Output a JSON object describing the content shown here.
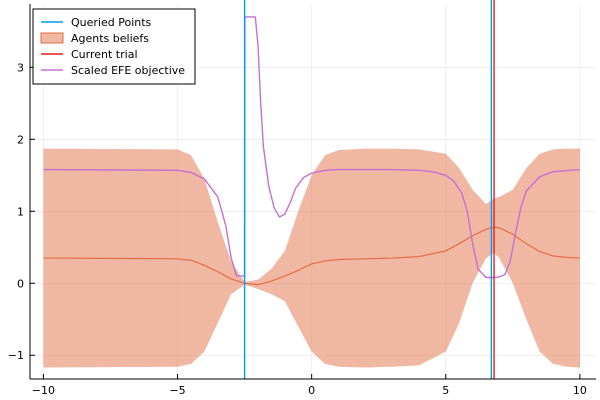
{
  "chart_data": {
    "type": "line",
    "title": "",
    "xlabel": "",
    "ylabel": "",
    "xlim": [
      -10.5,
      10.6
    ],
    "ylim": [
      -1.33,
      3.88
    ],
    "x_ticks": [
      -10,
      -5,
      0,
      5,
      10
    ],
    "y_ticks": [
      -1,
      0,
      1,
      2,
      3
    ],
    "x_tick_labels": [
      "−10",
      "−5",
      "0",
      "5",
      "10"
    ],
    "y_tick_labels": [
      "−1",
      "0",
      "1",
      "2",
      "3"
    ],
    "grid": true,
    "legend_position": "top-left",
    "series": [
      {
        "name": "Queried Points",
        "type": "vline",
        "color": "#009AFA",
        "x": [
          -2.5,
          6.7
        ]
      },
      {
        "name": "Agents beliefs",
        "type": "band",
        "fill_color": "#E26F46",
        "fill_opacity": 0.5,
        "line_color": "#E26F46",
        "x": [
          -10,
          -5,
          -4.5,
          -4,
          -3.5,
          -3,
          -2.5,
          -2,
          -1.5,
          -1,
          -0.5,
          0,
          0.5,
          1,
          2,
          3,
          4,
          5,
          5.5,
          6,
          6.5,
          6.8,
          7,
          7.5,
          8,
          8.5,
          9,
          9.5,
          10
        ],
        "mean": [
          0.35,
          0.34,
          0.32,
          0.25,
          0.16,
          0.06,
          0.0,
          -0.02,
          0.03,
          0.1,
          0.18,
          0.27,
          0.31,
          0.33,
          0.34,
          0.35,
          0.37,
          0.45,
          0.55,
          0.66,
          0.75,
          0.78,
          0.77,
          0.68,
          0.55,
          0.44,
          0.38,
          0.36,
          0.35
        ],
        "upper": [
          1.87,
          1.86,
          1.78,
          1.45,
          0.85,
          0.3,
          0.02,
          0.05,
          0.2,
          0.45,
          1.0,
          1.5,
          1.78,
          1.85,
          1.87,
          1.87,
          1.86,
          1.8,
          1.6,
          1.3,
          1.1,
          1.18,
          1.2,
          1.3,
          1.6,
          1.8,
          1.86,
          1.87,
          1.87
        ],
        "lower": [
          -1.17,
          -1.16,
          -1.12,
          -0.95,
          -0.55,
          -0.15,
          -0.02,
          -0.08,
          -0.15,
          -0.25,
          -0.6,
          -0.95,
          -1.12,
          -1.16,
          -1.17,
          -1.16,
          -1.14,
          -0.95,
          -0.55,
          0.0,
          0.35,
          0.42,
          0.35,
          0.0,
          -0.5,
          -0.95,
          -1.12,
          -1.16,
          -1.17
        ]
      },
      {
        "name": "Current trial",
        "type": "vline",
        "color": "#E3211E",
        "x": [
          6.8
        ]
      },
      {
        "name": "Scaled EFE objective",
        "type": "line",
        "color": "#C271D2",
        "x": [
          -10,
          -5,
          -4.5,
          -4,
          -3.5,
          -3.2,
          -3.0,
          -2.8,
          -2.6,
          -2.5,
          -2.49,
          -2.3,
          -2.1,
          -2.0,
          -1.9,
          -1.8,
          -1.6,
          -1.4,
          -1.2,
          -1.0,
          -0.8,
          -0.6,
          -0.3,
          0,
          0.5,
          1,
          2,
          3,
          4,
          4.5,
          5,
          5.3,
          5.6,
          5.8,
          6.0,
          6.2,
          6.5,
          6.8,
          7.0,
          7.2,
          7.4,
          7.6,
          7.8,
          8.0,
          8.5,
          9,
          10
        ],
        "y": [
          1.58,
          1.57,
          1.54,
          1.45,
          1.2,
          0.8,
          0.35,
          0.1,
          0.1,
          0.1,
          3.7,
          3.7,
          3.7,
          3.3,
          2.5,
          1.9,
          1.35,
          1.05,
          0.92,
          0.96,
          1.12,
          1.32,
          1.47,
          1.53,
          1.57,
          1.58,
          1.58,
          1.58,
          1.57,
          1.55,
          1.5,
          1.42,
          1.25,
          1.0,
          0.55,
          0.2,
          0.08,
          0.08,
          0.09,
          0.12,
          0.3,
          0.7,
          1.05,
          1.28,
          1.48,
          1.55,
          1.58
        ]
      }
    ]
  }
}
